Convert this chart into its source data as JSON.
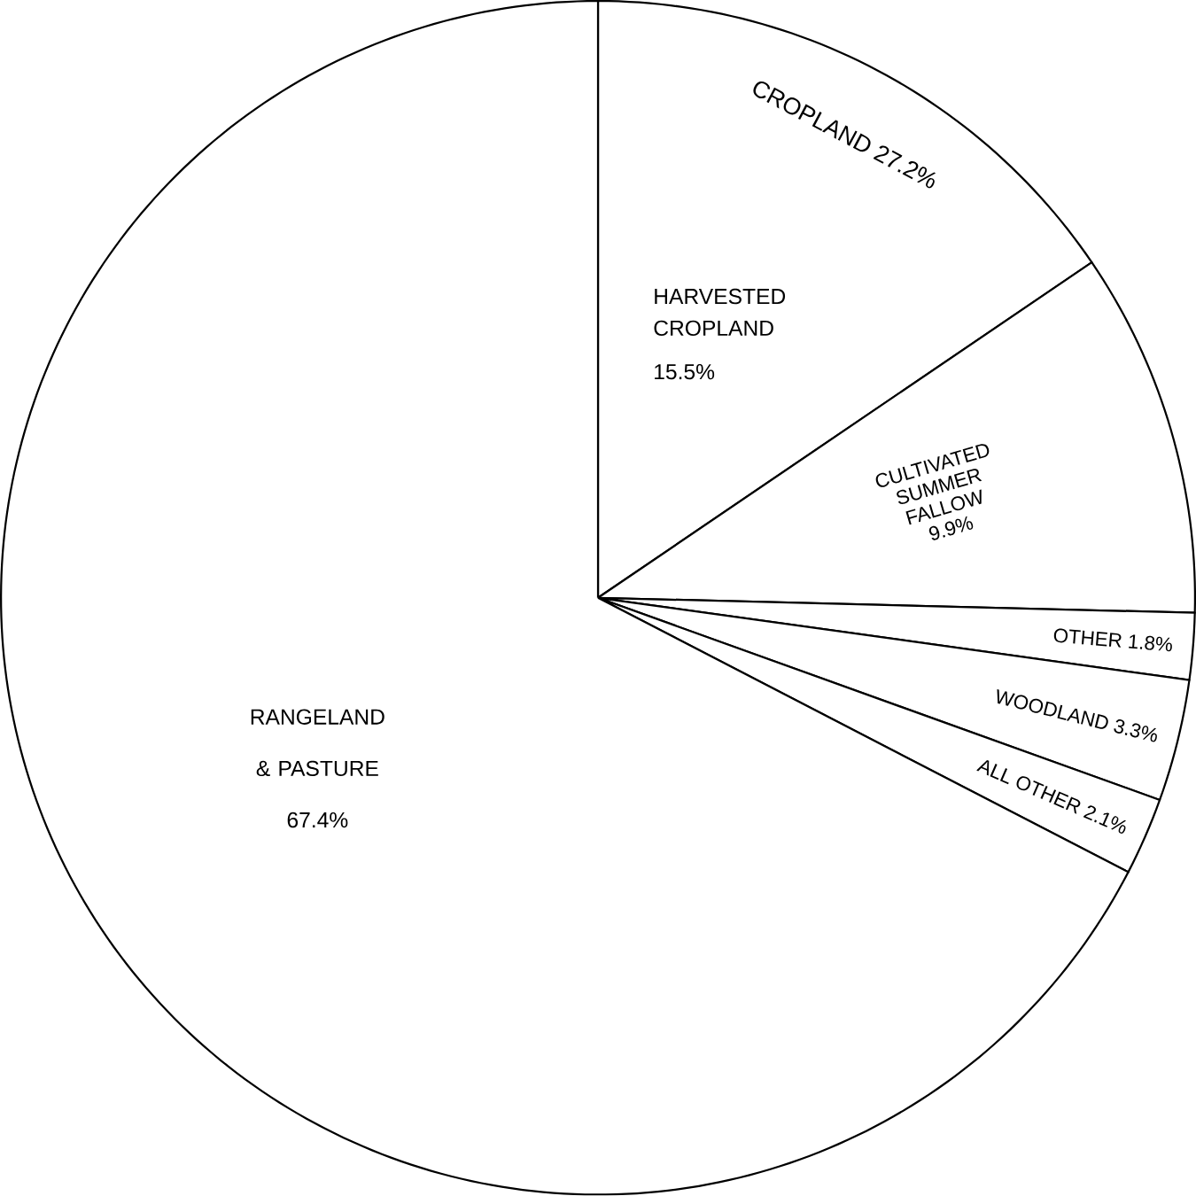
{
  "chart_data": {
    "type": "pie",
    "categories": [
      "HARVESTED CROPLAND",
      "CULTIVATED SUMMER FALLOW",
      "OTHER",
      "WOODLAND",
      "ALL OTHER",
      "RANGELAND & PASTURE"
    ],
    "values": [
      15.5,
      9.9,
      1.8,
      3.3,
      2.1,
      67.4
    ],
    "value_labels": [
      "15.5%",
      "9.9%",
      "1.8%",
      "3.3%",
      "2.1%",
      "67.4%"
    ],
    "colors": [
      "#ffffff",
      "#ffffff",
      "#ffffff",
      "#ffffff",
      "#ffffff",
      "#ffffff"
    ],
    "annotations": [
      "CROPLAND 27.2%"
    ]
  }
}
